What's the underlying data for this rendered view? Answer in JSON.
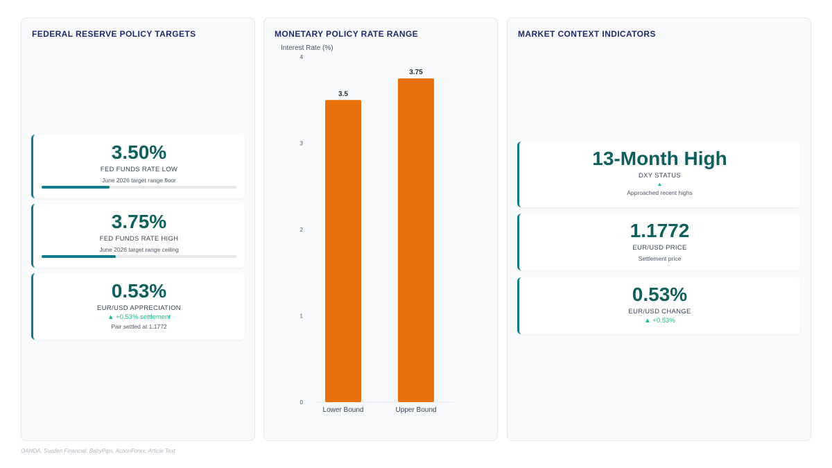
{
  "left_panel": {
    "title": "FEDERAL RESERVE POLICY TARGETS",
    "cards": [
      {
        "value": "3.50%",
        "label": "FED FUNDS RATE LOW",
        "sub": "June 2026 target range floor",
        "progress": 0.35
      },
      {
        "value": "3.75%",
        "label": "FED FUNDS RATE HIGH",
        "sub": "June 2026 target range ceiling",
        "progress": 0.38
      },
      {
        "value": "0.53%",
        "label": "EUR/USD APPRECIATION",
        "change": "▲ +0.53% settlement",
        "sub": "Pair settled at 1.1772"
      }
    ]
  },
  "middle_panel": {
    "title": "MONETARY POLICY RATE RANGE"
  },
  "chart_data": {
    "type": "bar",
    "categories": [
      "Lower Bound",
      "Upper Bound"
    ],
    "values": [
      3.5,
      3.75
    ],
    "data_labels": [
      "3.5",
      "3.75"
    ],
    "title": "MONETARY POLICY RATE RANGE",
    "xlabel": "",
    "ylabel": "Interest Rate (%)",
    "ylim": [
      0,
      4
    ],
    "yticks": [
      "0",
      "1",
      "2",
      "3",
      "4"
    ],
    "grid": false,
    "bar_color": "#e8700a"
  },
  "right_panel": {
    "title": "MARKET CONTEXT INDICATORS",
    "cards": [
      {
        "value": "13-Month High",
        "label": "DXY STATUS",
        "arrow": "▲",
        "sub": "Approached recent highs"
      },
      {
        "value": "1.1772",
        "label": "EUR/USD PRICE",
        "sub": "Settlement price"
      },
      {
        "value": "0.53%",
        "label": "EUR/USD CHANGE",
        "change": "▲ +0.53%"
      }
    ]
  },
  "footer": {
    "sources": "OANDA, Sucden Financial, BabyPips, ActionForex, Article Text"
  },
  "colors": {
    "accent": "#0e7b86",
    "value_text": "#0f5f5e",
    "positive": "#10b981",
    "bar": "#e8700a",
    "title": "#1e2a6b"
  }
}
